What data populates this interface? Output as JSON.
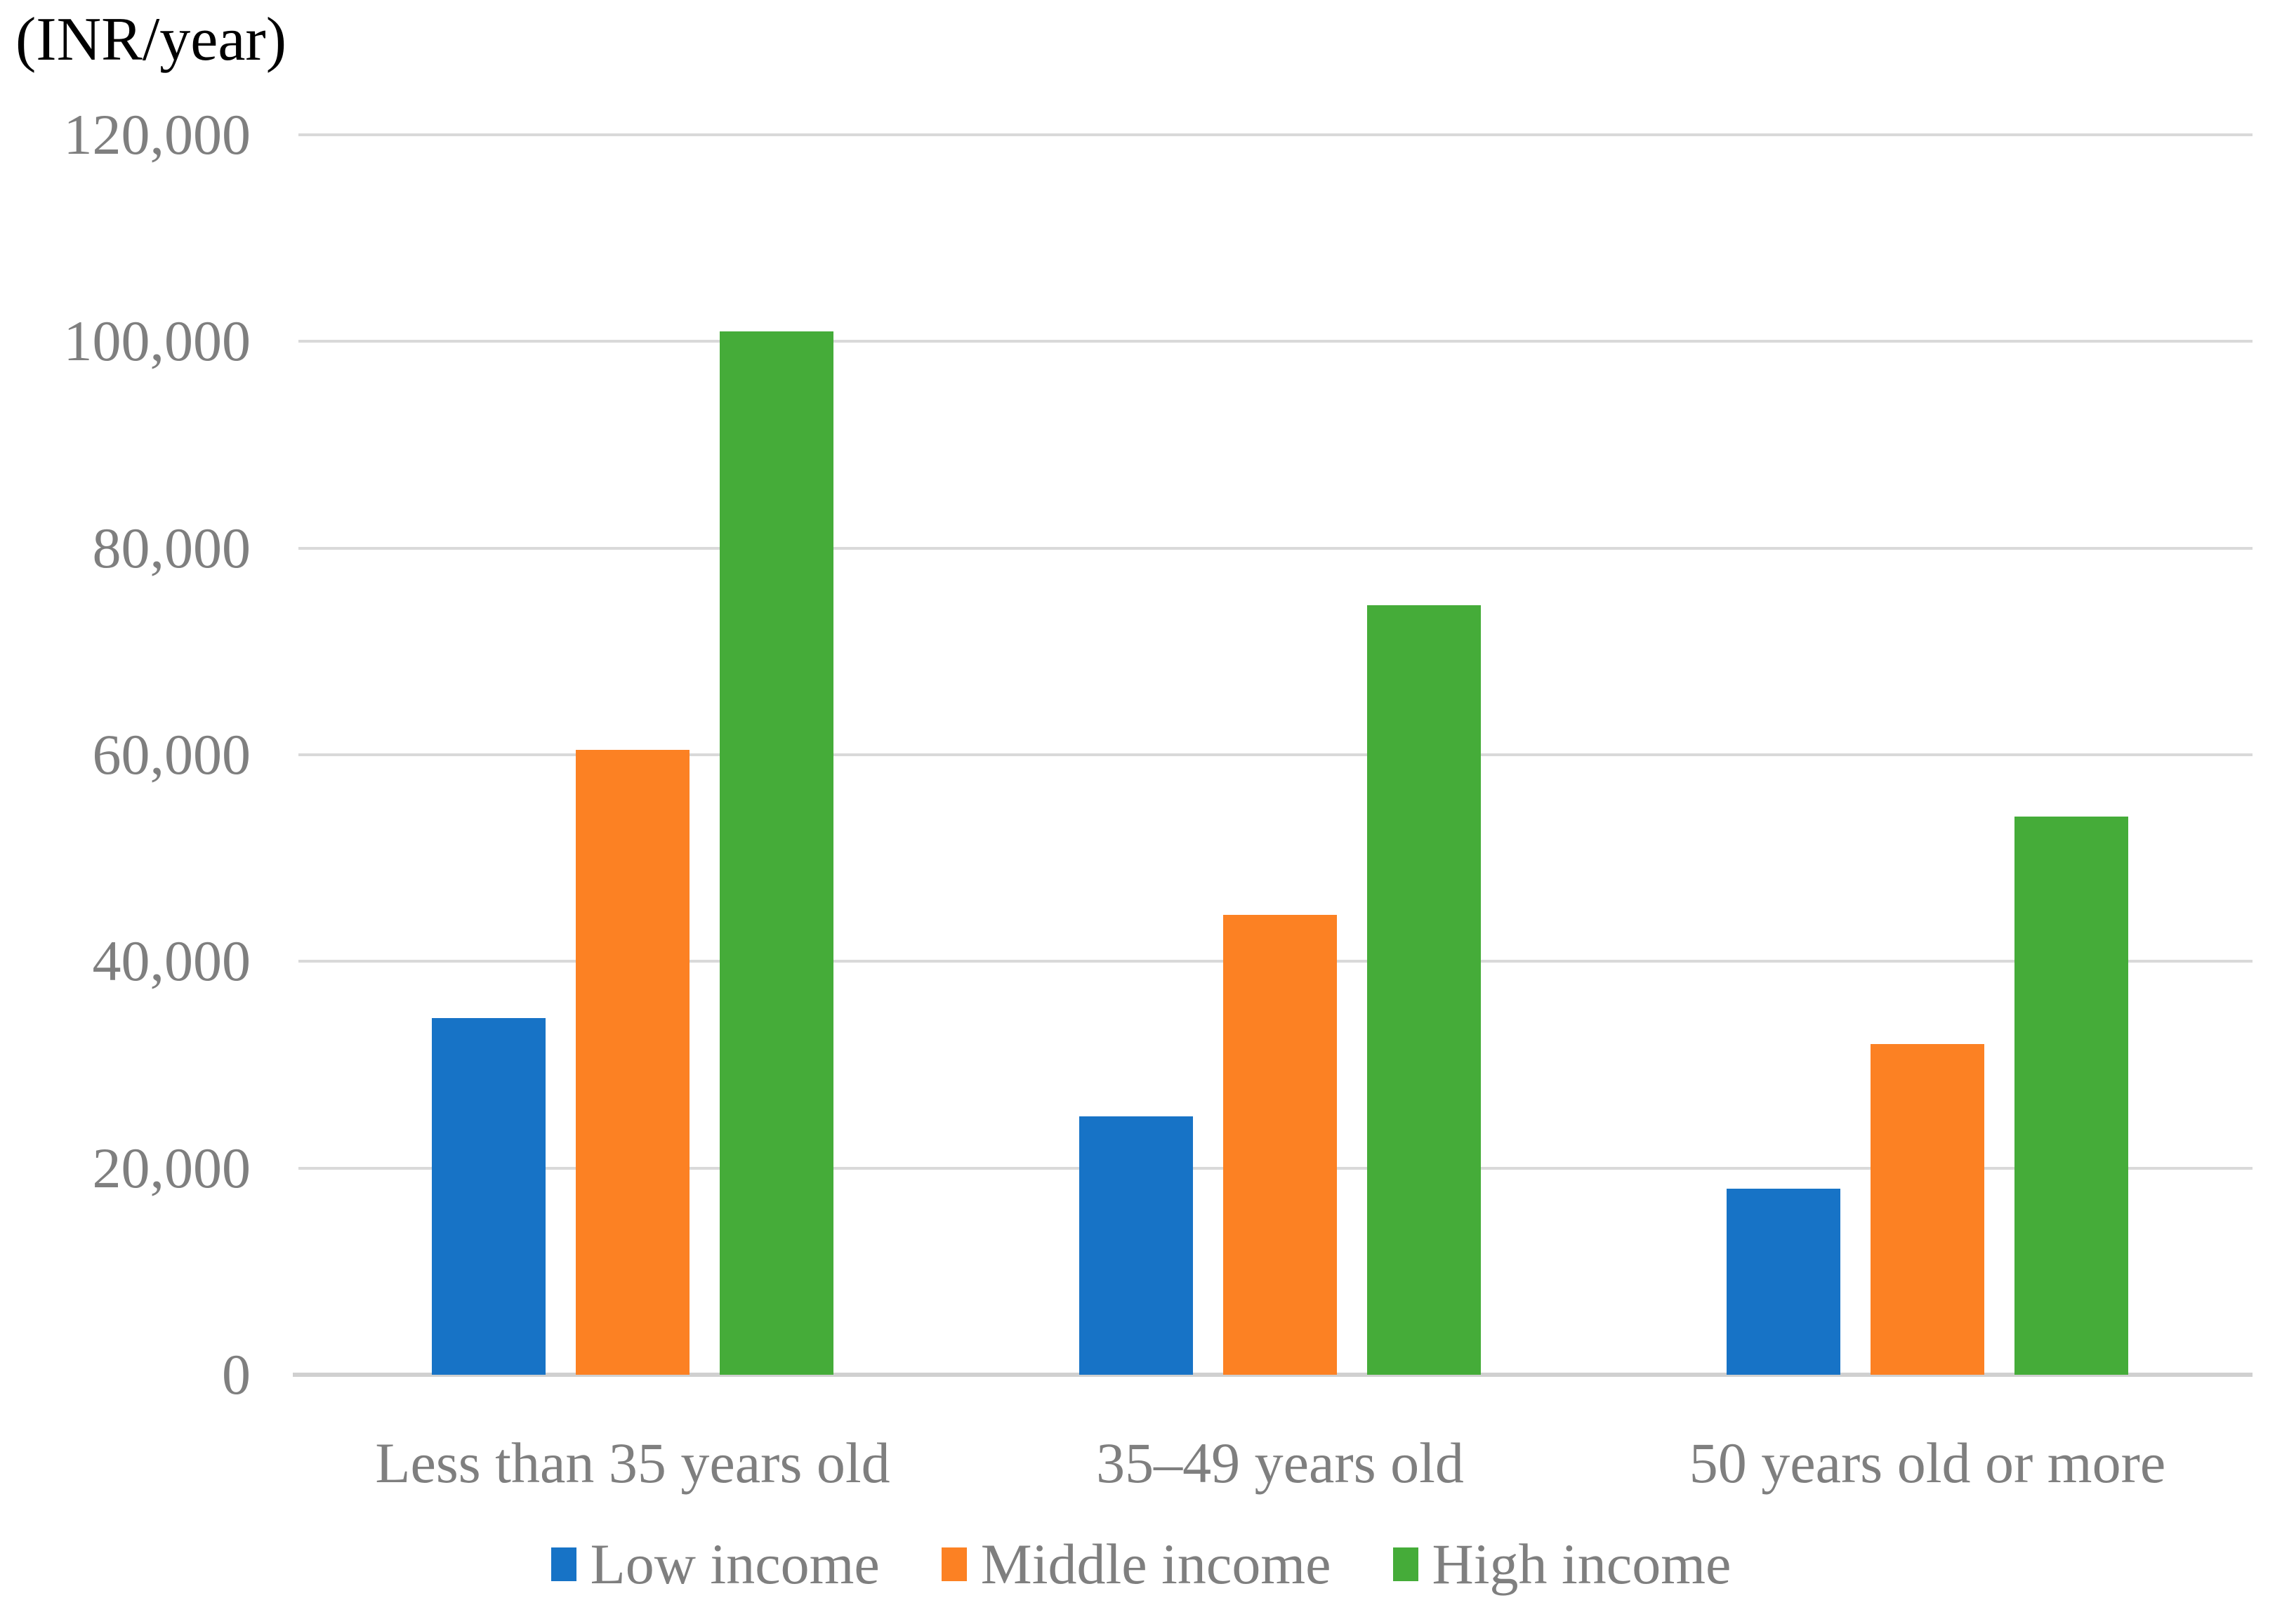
{
  "figure": {
    "background": "#ffffff",
    "text_color": "#7f7f7f",
    "grid_color": "#d9d9d9",
    "axis_line_color": "#d0d0d0",
    "title_color": "#000000"
  },
  "chart_data": {
    "type": "bar",
    "title": "",
    "unit_label": "(INR/year)",
    "xlabel": "",
    "ylabel": "(INR/year)",
    "categories": [
      "Less than 35 years old",
      "35–49 years old",
      "50 years old or more"
    ],
    "series": [
      {
        "name": "Low income",
        "color": "#1773c6",
        "values": [
          34500,
          25000,
          18000
        ]
      },
      {
        "name": "Middle income",
        "color": "#fc8123",
        "values": [
          60500,
          44500,
          32000
        ]
      },
      {
        "name": "High income",
        "color": "#45ac39",
        "values": [
          101000,
          74500,
          54000
        ]
      }
    ],
    "ylim": [
      0,
      120000
    ],
    "ytick_step": 20000,
    "ytick_labels": [
      "0",
      "20,000",
      "40,000",
      "60,000",
      "80,000",
      "100,000",
      "120,000"
    ],
    "grid": true,
    "legend_position": "bottom"
  }
}
